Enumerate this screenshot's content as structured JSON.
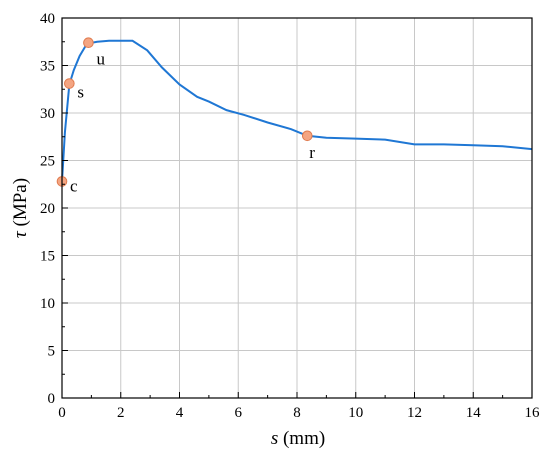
{
  "chart_data": {
    "type": "line",
    "title": "",
    "xlabel": {
      "symbol": "s",
      "unit": "(mm)"
    },
    "ylabel": {
      "symbol": "τ",
      "unit": "(MPa)"
    },
    "xlim": [
      0,
      16
    ],
    "ylim": [
      0,
      40
    ],
    "xticks": [
      0,
      2,
      4,
      6,
      8,
      10,
      12,
      14,
      16
    ],
    "yticks": [
      0,
      5,
      10,
      15,
      20,
      25,
      30,
      35,
      40
    ],
    "grid": true,
    "line_color": "#1f77d4",
    "marker_color": "#f4a582",
    "series": [
      {
        "x": [
          0,
          0.1,
          0.25,
          0.4,
          0.6,
          0.85,
          1.2,
          1.6,
          2.0,
          2.4,
          2.9,
          3.4,
          4.0,
          4.6,
          5.0,
          5.6,
          6.2,
          7.0,
          7.8,
          8.35,
          9.0,
          10.0,
          11.0,
          12.0,
          13.0,
          14.0,
          15.0,
          16.0
        ],
        "y": [
          22.8,
          28.0,
          33.0,
          34.5,
          36.0,
          37.3,
          37.5,
          37.6,
          37.6,
          37.6,
          36.6,
          34.8,
          33.0,
          31.7,
          31.2,
          30.3,
          29.8,
          29.0,
          28.3,
          27.6,
          27.4,
          27.3,
          27.2,
          26.7,
          26.7,
          26.6,
          26.5,
          26.2
        ]
      }
    ],
    "points": [
      {
        "label": "c",
        "x": 0.0,
        "y": 22.8
      },
      {
        "label": "s",
        "x": 0.25,
        "y": 33.1
      },
      {
        "label": "u",
        "x": 0.9,
        "y": 37.4
      },
      {
        "label": "r",
        "x": 8.35,
        "y": 27.6
      }
    ]
  }
}
